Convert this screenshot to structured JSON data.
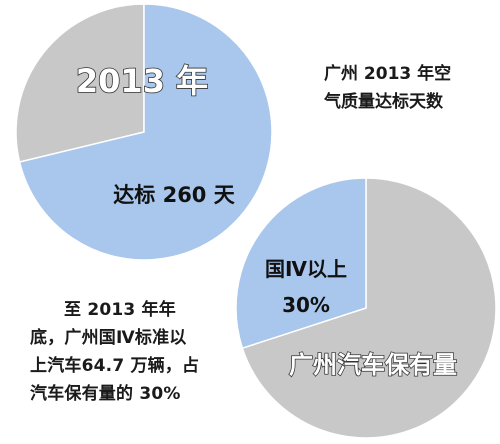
{
  "chart_data": [
    {
      "type": "pie",
      "title": "2013 年",
      "slices": [
        {
          "label": "达标 260 天",
          "value": 260,
          "color": "#a9c7ec"
        },
        {
          "label": "",
          "value": 105,
          "color": "#c8c8c8"
        }
      ]
    },
    {
      "type": "pie",
      "slices": [
        {
          "label": "国Ⅳ以上 30%",
          "value": 30,
          "color": "#a9c7ec"
        },
        {
          "label": "广州汽车保有量",
          "value": 70,
          "color": "#c8c8c8"
        }
      ]
    }
  ],
  "labels": {
    "pie1_title": "2013 年",
    "pie1_slice": "达标 260 天",
    "pie2_slice_line1": "国Ⅳ以上",
    "pie2_slice_line2": "30%",
    "pie2_rest": "广州汽车保有量"
  },
  "captions": {
    "top": [
      "广州 2013 年空",
      "气质量达标天数"
    ],
    "bottom": [
      "至 2013 年年",
      "底，广州国Ⅳ标准以",
      "上汽车64.7 万辆，占",
      "汽车保有量的 30%"
    ]
  }
}
